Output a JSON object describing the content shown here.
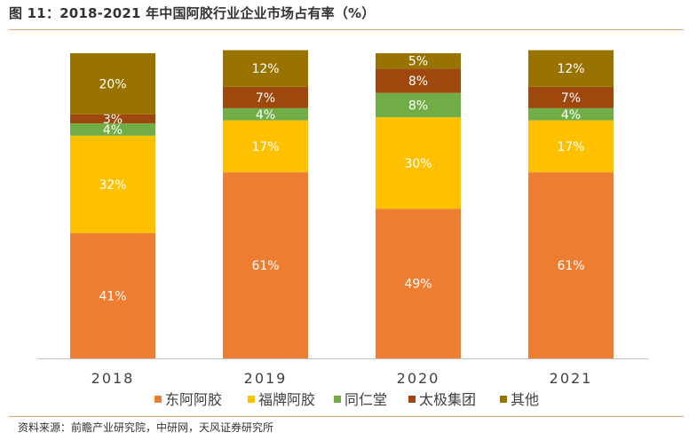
{
  "title": "图 11：2018-2021 年中国阿胶行业企业市场占有率（%）",
  "source": "资料来源：前瞻产业研究院，中研网，天风证券研究所",
  "chart_data": {
    "type": "bar",
    "stacked": true,
    "value_suffix": "%",
    "categories": [
      "2018",
      "2019",
      "2020",
      "2021"
    ],
    "series": [
      {
        "name": "东阿阿胶",
        "color": "#ED7D31",
        "values": [
          41,
          61,
          49,
          61
        ]
      },
      {
        "name": "福牌阿胶",
        "color": "#FFC000",
        "values": [
          32,
          17,
          30,
          17
        ]
      },
      {
        "name": "同仁堂",
        "color": "#70AD47",
        "values": [
          4,
          4,
          8,
          4
        ]
      },
      {
        "name": "太极集团",
        "color": "#9E480E",
        "values": [
          3,
          7,
          8,
          7
        ]
      },
      {
        "name": "其他",
        "color": "#997300",
        "values": [
          20,
          12,
          5,
          12
        ]
      }
    ],
    "ylim": [
      0,
      100
    ],
    "legend_position": "bottom",
    "grid": false
  }
}
